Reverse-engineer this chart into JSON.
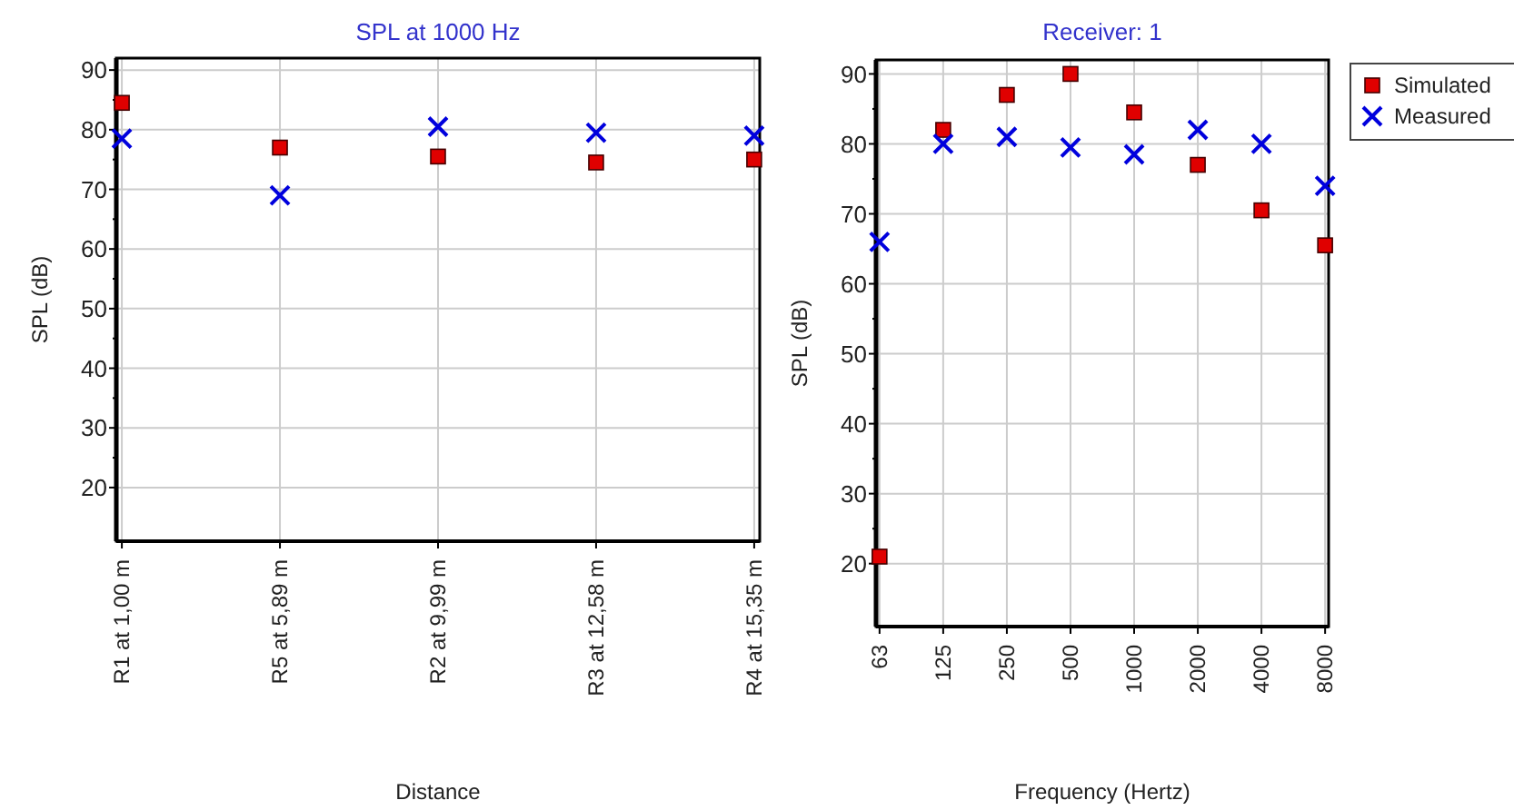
{
  "chart_data": [
    {
      "type": "scatter",
      "title": "SPL at 1000 Hz",
      "xlabel": "Distance",
      "ylabel": "SPL (dB)",
      "categories": [
        "R1 at 1,00 m",
        "R5 at 5,89 m",
        "R2 at 9,99 m",
        "R3 at 12,58 m",
        "R4 at 15,35 m"
      ],
      "series": [
        {
          "color": "#e00000",
          "marker": "square",
          "values": [
            84.5,
            77,
            75.5,
            74.5,
            75
          ]
        },
        {
          "color": "#0000dd",
          "marker": "cross",
          "values": [
            78.5,
            69,
            80.5,
            79.5,
            79
          ]
        }
      ],
      "ylim": [
        11,
        92
      ],
      "yticks": [
        20,
        30,
        40,
        50,
        60,
        70,
        80,
        90
      ],
      "grid": true,
      "legend": false
    },
    {
      "type": "scatter",
      "title": "Receiver: 1",
      "xlabel": "Frequency (Hertz)",
      "ylabel": "SPL (dB)",
      "categories": [
        "63",
        "125",
        "250",
        "500",
        "1000",
        "2000",
        "4000",
        "8000"
      ],
      "series": [
        {
          "name": "Simulated",
          "color": "#e00000",
          "marker": "square",
          "values": [
            21,
            82,
            87,
            90,
            84.5,
            77,
            70.5,
            65.5
          ]
        },
        {
          "name": "Measured",
          "color": "#0000dd",
          "marker": "cross",
          "values": [
            66,
            80,
            81,
            79.5,
            78.5,
            82,
            80,
            74
          ]
        }
      ],
      "ylim": [
        11,
        92
      ],
      "yticks": [
        20,
        30,
        40,
        50,
        60,
        70,
        80,
        90
      ],
      "grid": true,
      "legend": "right"
    }
  ]
}
